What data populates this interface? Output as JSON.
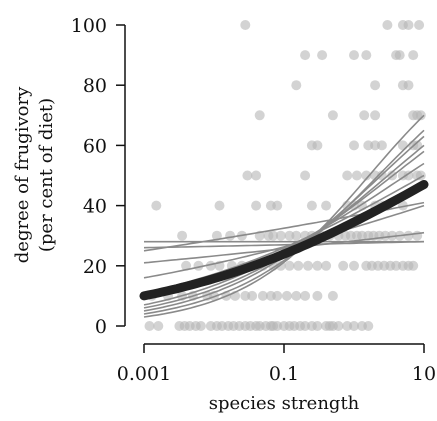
{
  "chart_data": {
    "type": "scatter",
    "title": "",
    "xlabel": "species strength",
    "ylabel_lines": [
      "degree of frugivory",
      "(per cent of diet)"
    ],
    "x_scale": "log10",
    "xlim": [
      0.001,
      10
    ],
    "ylim": [
      0,
      100
    ],
    "x_ticks": [
      0.001,
      0.1,
      10
    ],
    "x_tick_labels": [
      "0.001",
      "0.1",
      "10"
    ],
    "y_ticks": [
      0,
      20,
      40,
      60,
      80,
      100
    ],
    "y_tick_labels": [
      "0",
      "20",
      "40",
      "60",
      "80",
      "100"
    ],
    "grid": false,
    "colors": {
      "points": "#b5b5b5",
      "individual_fits": "#8a8a8a",
      "overall_fit": "#222222",
      "axes": "#111111"
    },
    "points": [
      {
        "x": 0.0012,
        "y": 0
      },
      {
        "x": 0.0016,
        "y": 0
      },
      {
        "x": 0.0032,
        "y": 0
      },
      {
        "x": 0.0038,
        "y": 0
      },
      {
        "x": 0.0045,
        "y": 0
      },
      {
        "x": 0.0055,
        "y": 0
      },
      {
        "x": 0.0065,
        "y": 0
      },
      {
        "x": 0.009,
        "y": 0
      },
      {
        "x": 0.011,
        "y": 0
      },
      {
        "x": 0.013,
        "y": 0
      },
      {
        "x": 0.016,
        "y": 0
      },
      {
        "x": 0.019,
        "y": 0
      },
      {
        "x": 0.023,
        "y": 0
      },
      {
        "x": 0.028,
        "y": 0
      },
      {
        "x": 0.033,
        "y": 0
      },
      {
        "x": 0.04,
        "y": 0
      },
      {
        "x": 0.045,
        "y": 0
      },
      {
        "x": 0.055,
        "y": 0
      },
      {
        "x": 0.065,
        "y": 0
      },
      {
        "x": 0.07,
        "y": 0
      },
      {
        "x": 0.08,
        "y": 0
      },
      {
        "x": 0.1,
        "y": 0
      },
      {
        "x": 0.12,
        "y": 0
      },
      {
        "x": 0.14,
        "y": 0
      },
      {
        "x": 0.17,
        "y": 0
      },
      {
        "x": 0.2,
        "y": 0
      },
      {
        "x": 0.25,
        "y": 0
      },
      {
        "x": 0.3,
        "y": 0
      },
      {
        "x": 0.4,
        "y": 0
      },
      {
        "x": 0.45,
        "y": 0
      },
      {
        "x": 0.5,
        "y": 0
      },
      {
        "x": 0.6,
        "y": 0
      },
      {
        "x": 0.8,
        "y": 0
      },
      {
        "x": 1.0,
        "y": 0
      },
      {
        "x": 1.3,
        "y": 0
      },
      {
        "x": 1.6,
        "y": 0
      },
      {
        "x": 0.0013,
        "y": 10
      },
      {
        "x": 0.0022,
        "y": 10
      },
      {
        "x": 0.0035,
        "y": 10
      },
      {
        "x": 0.005,
        "y": 10
      },
      {
        "x": 0.008,
        "y": 10
      },
      {
        "x": 0.01,
        "y": 10
      },
      {
        "x": 0.015,
        "y": 10
      },
      {
        "x": 0.02,
        "y": 10
      },
      {
        "x": 0.028,
        "y": 10
      },
      {
        "x": 0.035,
        "y": 10
      },
      {
        "x": 0.05,
        "y": 10
      },
      {
        "x": 0.065,
        "y": 10
      },
      {
        "x": 0.08,
        "y": 10
      },
      {
        "x": 0.11,
        "y": 10
      },
      {
        "x": 0.15,
        "y": 10
      },
      {
        "x": 0.2,
        "y": 10
      },
      {
        "x": 0.3,
        "y": 10
      },
      {
        "x": 0.5,
        "y": 10
      },
      {
        "x": 0.004,
        "y": 20
      },
      {
        "x": 0.006,
        "y": 20
      },
      {
        "x": 0.009,
        "y": 20
      },
      {
        "x": 0.012,
        "y": 20
      },
      {
        "x": 0.018,
        "y": 20
      },
      {
        "x": 0.025,
        "y": 20
      },
      {
        "x": 0.035,
        "y": 20
      },
      {
        "x": 0.05,
        "y": 20
      },
      {
        "x": 0.07,
        "y": 20
      },
      {
        "x": 0.09,
        "y": 20
      },
      {
        "x": 0.12,
        "y": 20
      },
      {
        "x": 0.16,
        "y": 20
      },
      {
        "x": 0.22,
        "y": 20
      },
      {
        "x": 0.3,
        "y": 20
      },
      {
        "x": 0.4,
        "y": 20
      },
      {
        "x": 0.7,
        "y": 20
      },
      {
        "x": 1.0,
        "y": 20
      },
      {
        "x": 1.5,
        "y": 20
      },
      {
        "x": 1.8,
        "y": 20
      },
      {
        "x": 2.2,
        "y": 20
      },
      {
        "x": 2.7,
        "y": 20
      },
      {
        "x": 3.3,
        "y": 20
      },
      {
        "x": 4.0,
        "y": 20
      },
      {
        "x": 5.0,
        "y": 20
      },
      {
        "x": 6.0,
        "y": 20
      },
      {
        "x": 7.0,
        "y": 20
      },
      {
        "x": 0.0035,
        "y": 30
      },
      {
        "x": 0.011,
        "y": 30
      },
      {
        "x": 0.017,
        "y": 30
      },
      {
        "x": 0.025,
        "y": 30
      },
      {
        "x": 0.045,
        "y": 30
      },
      {
        "x": 0.06,
        "y": 30
      },
      {
        "x": 0.07,
        "y": 30
      },
      {
        "x": 0.09,
        "y": 30
      },
      {
        "x": 0.12,
        "y": 30
      },
      {
        "x": 0.15,
        "y": 30
      },
      {
        "x": 0.2,
        "y": 30
      },
      {
        "x": 0.25,
        "y": 30
      },
      {
        "x": 0.35,
        "y": 30
      },
      {
        "x": 0.45,
        "y": 30
      },
      {
        "x": 0.6,
        "y": 30
      },
      {
        "x": 0.75,
        "y": 30
      },
      {
        "x": 0.9,
        "y": 30
      },
      {
        "x": 1.1,
        "y": 30
      },
      {
        "x": 1.3,
        "y": 30
      },
      {
        "x": 1.6,
        "y": 30
      },
      {
        "x": 1.9,
        "y": 30
      },
      {
        "x": 2.3,
        "y": 30
      },
      {
        "x": 2.8,
        "y": 30
      },
      {
        "x": 3.5,
        "y": 30
      },
      {
        "x": 4.5,
        "y": 30
      },
      {
        "x": 6.0,
        "y": 30
      },
      {
        "x": 8.0,
        "y": 30
      },
      {
        "x": 0.0015,
        "y": 40
      },
      {
        "x": 0.012,
        "y": 40
      },
      {
        "x": 0.04,
        "y": 40
      },
      {
        "x": 0.065,
        "y": 40
      },
      {
        "x": 0.08,
        "y": 40
      },
      {
        "x": 0.25,
        "y": 40
      },
      {
        "x": 0.4,
        "y": 40
      },
      {
        "x": 0.8,
        "y": 40
      },
      {
        "x": 1.0,
        "y": 40
      },
      {
        "x": 1.3,
        "y": 40
      },
      {
        "x": 2.0,
        "y": 40
      },
      {
        "x": 2.6,
        "y": 40
      },
      {
        "x": 3.0,
        "y": 40
      },
      {
        "x": 5.0,
        "y": 40
      },
      {
        "x": 0.03,
        "y": 50
      },
      {
        "x": 0.04,
        "y": 50
      },
      {
        "x": 0.2,
        "y": 50
      },
      {
        "x": 0.8,
        "y": 50
      },
      {
        "x": 1.1,
        "y": 50
      },
      {
        "x": 1.5,
        "y": 50
      },
      {
        "x": 2.0,
        "y": 50
      },
      {
        "x": 2.5,
        "y": 50
      },
      {
        "x": 3.5,
        "y": 50
      },
      {
        "x": 5.0,
        "y": 50
      },
      {
        "x": 6.0,
        "y": 50
      },
      {
        "x": 8.0,
        "y": 50
      },
      {
        "x": 9.0,
        "y": 50
      },
      {
        "x": 0.25,
        "y": 60
      },
      {
        "x": 0.3,
        "y": 60
      },
      {
        "x": 1.0,
        "y": 60
      },
      {
        "x": 1.6,
        "y": 60
      },
      {
        "x": 2.0,
        "y": 60
      },
      {
        "x": 2.5,
        "y": 60
      },
      {
        "x": 5.0,
        "y": 60
      },
      {
        "x": 7.0,
        "y": 60
      },
      {
        "x": 8.0,
        "y": 60
      },
      {
        "x": 0.045,
        "y": 70
      },
      {
        "x": 0.5,
        "y": 70
      },
      {
        "x": 1.4,
        "y": 70
      },
      {
        "x": 2.0,
        "y": 70
      },
      {
        "x": 7.0,
        "y": 70
      },
      {
        "x": 8.0,
        "y": 70
      },
      {
        "x": 9.0,
        "y": 70
      },
      {
        "x": 0.15,
        "y": 80
      },
      {
        "x": 2.0,
        "y": 80
      },
      {
        "x": 5.0,
        "y": 80
      },
      {
        "x": 6.0,
        "y": 80
      },
      {
        "x": 0.2,
        "y": 90
      },
      {
        "x": 0.35,
        "y": 90
      },
      {
        "x": 1.0,
        "y": 90
      },
      {
        "x": 1.5,
        "y": 90
      },
      {
        "x": 4.0,
        "y": 90
      },
      {
        "x": 4.5,
        "y": 90
      },
      {
        "x": 7.0,
        "y": 90
      },
      {
        "x": 0.028,
        "y": 100
      },
      {
        "x": 3.0,
        "y": 100
      },
      {
        "x": 5.0,
        "y": 100
      },
      {
        "x": 6.0,
        "y": 100
      },
      {
        "x": 8.5,
        "y": 100
      }
    ],
    "individual_fits": [
      {
        "y_at_xmin": 26,
        "y_at_xmax": 28
      },
      {
        "y_at_xmin": 28,
        "y_at_xmax": 28
      },
      {
        "y_at_xmin": 21,
        "y_at_xmax": 31
      },
      {
        "y_at_xmin": 16,
        "y_at_xmax": 40
      },
      {
        "y_at_xmin": 25,
        "y_at_xmax": 41
      },
      {
        "y_at_xmin": 11,
        "y_at_xmax": 50
      },
      {
        "y_at_xmin": 9,
        "y_at_xmax": 54
      },
      {
        "y_at_xmin": 7,
        "y_at_xmax": 58
      },
      {
        "y_at_xmin": 6,
        "y_at_xmax": 60
      },
      {
        "y_at_xmin": 5,
        "y_at_xmax": 63
      },
      {
        "y_at_xmin": 4,
        "y_at_xmax": 65
      },
      {
        "y_at_xmin": 3,
        "y_at_xmax": 70
      }
    ],
    "overall_fit": {
      "y_at_xmin": 10,
      "y_at_xmax": 47
    }
  }
}
